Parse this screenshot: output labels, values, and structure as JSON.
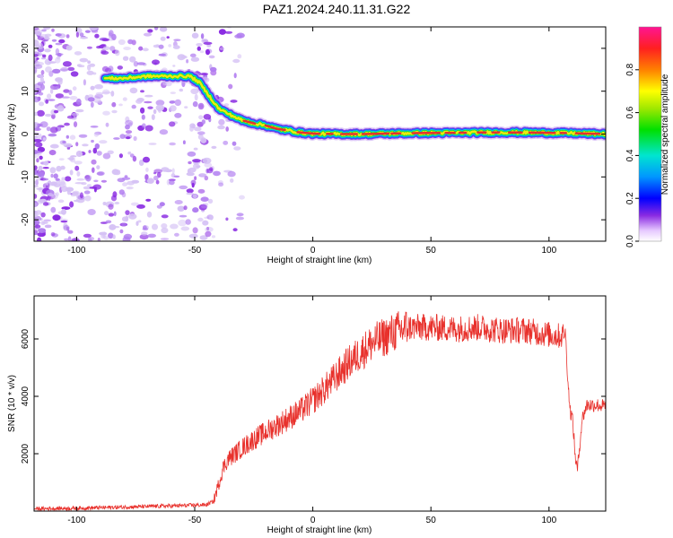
{
  "title": "PAZ1.2024.240.11.31.G22",
  "colors": {
    "snr_line": "#e8312c",
    "track_core": "#e53030",
    "speckle": "#8a2be2",
    "speckle_light": "#d6c2f5"
  },
  "chart_data": [
    {
      "type": "heatmap",
      "xlabel": "Height of straight line (km)",
      "ylabel": "Frequency (Hz)",
      "xlim": [
        -118,
        124
      ],
      "ylim": [
        -25,
        25
      ],
      "xticks": [
        -100,
        -50,
        0,
        50,
        100
      ],
      "yticks": [
        -20,
        -10,
        0,
        10,
        20
      ],
      "colorbar": {
        "label": "Normalized spectral amplitude",
        "range": [
          0.0,
          1.0
        ],
        "ticks": [
          "0.0",
          "0.2",
          "0.4",
          "0.6",
          "0.8"
        ]
      },
      "track": {
        "x": [
          -88,
          -80,
          -70,
          -60,
          -52,
          -48,
          -44,
          -40,
          -35,
          -30,
          -25,
          -20,
          -15,
          -10,
          -5,
          0,
          10,
          20,
          40,
          60,
          80,
          100,
          110,
          124
        ],
        "y": [
          13,
          13,
          13.5,
          13.5,
          13.5,
          12,
          9,
          6,
          4.5,
          3.2,
          2.5,
          2,
          1.2,
          0.8,
          0.3,
          0.1,
          0,
          0,
          0.2,
          0.3,
          0.4,
          0.3,
          0.2,
          0
        ]
      }
    },
    {
      "type": "line",
      "xlabel": "Height of straight line (km)",
      "ylabel": "SNR (10 * v/v)",
      "xlim": [
        -118,
        124
      ],
      "ylim": [
        0,
        7500
      ],
      "xticks": [
        -100,
        -50,
        0,
        50,
        100
      ],
      "yticks": [
        2000,
        4000,
        6000
      ],
      "series": [
        {
          "x": [
            -118,
            -100,
            -80,
            -60,
            -45,
            -42,
            -40,
            -38,
            -36,
            -30,
            -25,
            -20,
            -15,
            -10,
            -5,
            0,
            5,
            10,
            15,
            20,
            25,
            30,
            35,
            40,
            50,
            60,
            70,
            80,
            90,
            100,
            105,
            107,
            108,
            109,
            110,
            111,
            112,
            114,
            116,
            120,
            124
          ],
          "y": [
            80,
            100,
            140,
            180,
            220,
            350,
            900,
            1500,
            1800,
            2200,
            2500,
            2750,
            3000,
            3250,
            3500,
            3850,
            4250,
            4700,
            5150,
            5500,
            5850,
            6050,
            6250,
            6400,
            6400,
            6350,
            6400,
            6300,
            6300,
            6150,
            6100,
            6200,
            4500,
            3500,
            3200,
            2000,
            1400,
            3200,
            3700,
            3700,
            3650
          ]
        }
      ]
    }
  ]
}
